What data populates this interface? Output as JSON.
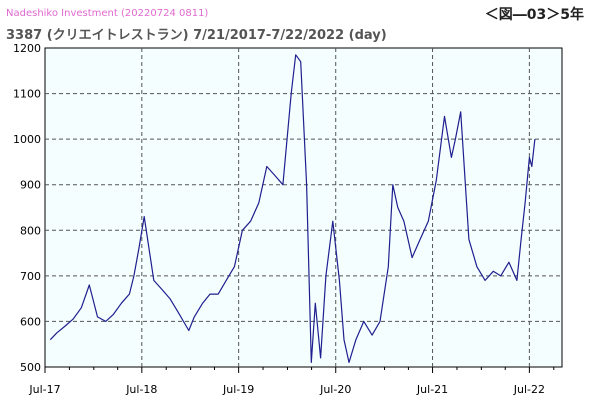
{
  "watermark": {
    "brand": "Nadeshiko Investment",
    "stamp": "(20220724 0811)"
  },
  "figure_label": "＜図―03＞5年",
  "chart_data": {
    "type": "line",
    "title": "3387 (クリエイトレストラン) 7/21/2017-7/22/2022 (day)",
    "xlabel": "",
    "ylabel": "",
    "ylim": [
      500,
      1200
    ],
    "yticks": [
      500,
      600,
      700,
      800,
      900,
      1000,
      1100,
      1200
    ],
    "xlim": [
      "2017-07-01",
      "2022-11-01"
    ],
    "xticks": [
      {
        "date": "2017-07-01",
        "label": "Jul-17"
      },
      {
        "date": "2018-07-01",
        "label": "Jul-18"
      },
      {
        "date": "2019-07-01",
        "label": "Jul-19"
      },
      {
        "date": "2020-07-01",
        "label": "Jul-20"
      },
      {
        "date": "2021-07-01",
        "label": "Jul-21"
      },
      {
        "date": "2022-07-01",
        "label": "Jul-22"
      }
    ],
    "grid": true,
    "line_color": "#1f1f8f",
    "plot_background": "#f4fefe",
    "series": [
      {
        "x": [
          "2017-07-21",
          "2017-08-15",
          "2017-09-15",
          "2017-10-15",
          "2017-11-15",
          "2017-12-15",
          "2018-01-15",
          "2018-02-15",
          "2018-03-15",
          "2018-04-15",
          "2018-05-15",
          "2018-06-01",
          "2018-06-20",
          "2018-07-10",
          "2018-08-15",
          "2018-09-15",
          "2018-10-15",
          "2018-11-15",
          "2018-12-25",
          "2019-01-15",
          "2019-02-15",
          "2019-03-15",
          "2019-04-15",
          "2019-05-15",
          "2019-06-15",
          "2019-07-15",
          "2019-08-15",
          "2019-09-15",
          "2019-10-15",
          "2019-11-15",
          "2019-12-15",
          "2020-01-15",
          "2020-02-01",
          "2020-02-20",
          "2020-03-13",
          "2020-03-31",
          "2020-04-15",
          "2020-05-05",
          "2020-05-25",
          "2020-06-20",
          "2020-07-15",
          "2020-08-01",
          "2020-08-20",
          "2020-09-15",
          "2020-10-15",
          "2020-11-15",
          "2020-12-15",
          "2021-01-15",
          "2021-02-01",
          "2021-02-20",
          "2021-03-15",
          "2021-04-15",
          "2021-05-15",
          "2021-06-15",
          "2021-07-15",
          "2021-08-15",
          "2021-09-10",
          "2021-09-25",
          "2021-10-15",
          "2021-11-15",
          "2021-12-15",
          "2022-01-15",
          "2022-02-15",
          "2022-03-15",
          "2022-04-15",
          "2022-05-15",
          "2022-05-31",
          "2022-06-15",
          "2022-07-01",
          "2022-07-10",
          "2022-07-22"
        ],
        "y": [
          560,
          575,
          590,
          605,
          630,
          680,
          610,
          600,
          615,
          640,
          660,
          700,
          760,
          830,
          690,
          670,
          650,
          620,
          580,
          610,
          640,
          660,
          660,
          690,
          720,
          800,
          820,
          860,
          940,
          920,
          900,
          1100,
          1185,
          1170,
          900,
          510,
          640,
          520,
          700,
          820,
          690,
          560,
          510,
          560,
          600,
          570,
          600,
          720,
          900,
          850,
          820,
          740,
          780,
          820,
          910,
          1050,
          960,
          1000,
          1060,
          780,
          720,
          690,
          710,
          700,
          730,
          690,
          780,
          860,
          960,
          940,
          1000
        ]
      }
    ]
  }
}
